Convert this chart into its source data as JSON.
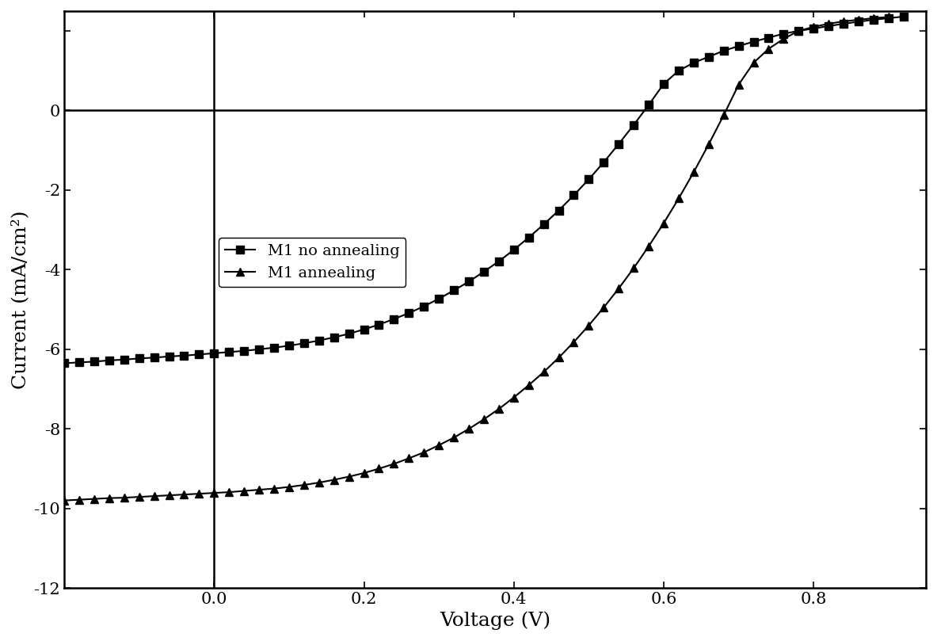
{
  "title": "",
  "xlabel": "Voltage (V)",
  "ylabel": "Current (mA/cm²)",
  "xlim": [
    -0.2,
    0.95
  ],
  "ylim": [
    -12,
    2.5
  ],
  "background_color": "#ffffff",
  "line_color": "#000000",
  "series": [
    {
      "label": "M1 no annealing",
      "marker": "s",
      "x": [
        -0.2,
        -0.18,
        -0.16,
        -0.14,
        -0.12,
        -0.1,
        -0.08,
        -0.06,
        -0.04,
        -0.02,
        0.0,
        0.02,
        0.04,
        0.06,
        0.08,
        0.1,
        0.12,
        0.14,
        0.16,
        0.18,
        0.2,
        0.22,
        0.24,
        0.26,
        0.28,
        0.3,
        0.32,
        0.34,
        0.36,
        0.38,
        0.4,
        0.42,
        0.44,
        0.46,
        0.48,
        0.5,
        0.52,
        0.54,
        0.56,
        0.58,
        0.6,
        0.62,
        0.64,
        0.66,
        0.68,
        0.7,
        0.72,
        0.74,
        0.76,
        0.78,
        0.8,
        0.82,
        0.84,
        0.86,
        0.88,
        0.9,
        0.92
      ],
      "y": [
        -6.35,
        -6.33,
        -6.31,
        -6.28,
        -6.26,
        -6.23,
        -6.21,
        -6.18,
        -6.16,
        -6.13,
        -6.1,
        -6.07,
        -6.04,
        -6.0,
        -5.96,
        -5.91,
        -5.85,
        -5.78,
        -5.7,
        -5.61,
        -5.5,
        -5.38,
        -5.24,
        -5.09,
        -4.92,
        -4.73,
        -4.52,
        -4.3,
        -4.05,
        -3.79,
        -3.5,
        -3.19,
        -2.86,
        -2.51,
        -2.13,
        -1.73,
        -1.3,
        -0.84,
        -0.36,
        0.14,
        0.67,
        1.0,
        1.2,
        1.35,
        1.5,
        1.62,
        1.73,
        1.83,
        1.93,
        2.0,
        2.06,
        2.12,
        2.18,
        2.23,
        2.28,
        2.32,
        2.36
      ]
    },
    {
      "label": "M1 annealing",
      "marker": "^",
      "x": [
        -0.2,
        -0.18,
        -0.16,
        -0.14,
        -0.12,
        -0.1,
        -0.08,
        -0.06,
        -0.04,
        -0.02,
        0.0,
        0.02,
        0.04,
        0.06,
        0.08,
        0.1,
        0.12,
        0.14,
        0.16,
        0.18,
        0.2,
        0.22,
        0.24,
        0.26,
        0.28,
        0.3,
        0.32,
        0.34,
        0.36,
        0.38,
        0.4,
        0.42,
        0.44,
        0.46,
        0.48,
        0.5,
        0.52,
        0.54,
        0.56,
        0.58,
        0.6,
        0.62,
        0.64,
        0.66,
        0.68,
        0.7,
        0.72,
        0.74,
        0.76,
        0.78,
        0.8,
        0.82,
        0.84,
        0.86,
        0.88,
        0.9
      ],
      "y": [
        -9.8,
        -9.78,
        -9.76,
        -9.74,
        -9.73,
        -9.71,
        -9.69,
        -9.67,
        -9.65,
        -9.63,
        -9.61,
        -9.59,
        -9.56,
        -9.53,
        -9.5,
        -9.46,
        -9.41,
        -9.35,
        -9.28,
        -9.2,
        -9.11,
        -9.0,
        -8.88,
        -8.74,
        -8.59,
        -8.41,
        -8.22,
        -8.0,
        -7.76,
        -7.5,
        -7.21,
        -6.9,
        -6.57,
        -6.21,
        -5.82,
        -5.4,
        -4.95,
        -4.47,
        -3.96,
        -3.41,
        -2.83,
        -2.21,
        -1.55,
        -0.85,
        -0.12,
        0.65,
        1.2,
        1.55,
        1.8,
        2.0,
        2.1,
        2.18,
        2.24,
        2.28,
        2.32,
        2.35
      ]
    }
  ],
  "xticks": [
    0.0,
    0.2,
    0.4,
    0.6,
    0.8
  ],
  "yticks": [
    -12,
    -10,
    -8,
    -6,
    -4,
    -2,
    0
  ],
  "extra_ytick": 2,
  "axhline_y": 0,
  "axvline_x": 0,
  "markersize": 7,
  "linewidth": 1.5,
  "fontsize_label": 18,
  "fontsize_tick": 15,
  "fontsize_legend": 14
}
